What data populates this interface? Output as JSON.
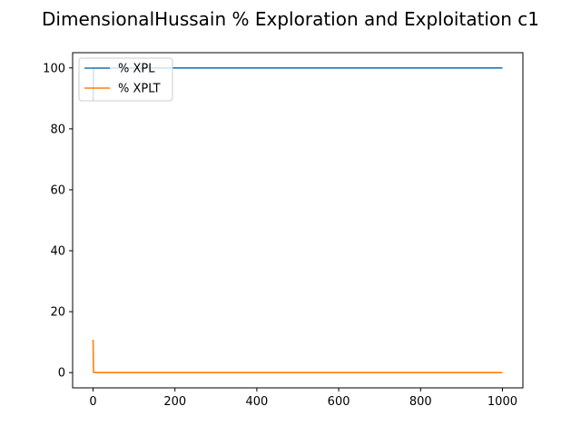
{
  "chart_data": {
    "type": "line",
    "title": "DimensionalHussain % Exploration and Exploitation c1",
    "xlabel": "",
    "ylabel": "",
    "xlim": [
      -50,
      1050
    ],
    "ylim": [
      -5,
      105
    ],
    "xticks": [
      0,
      200,
      400,
      600,
      800,
      1000
    ],
    "yticks": [
      0,
      20,
      40,
      60,
      80,
      100
    ],
    "grid": false,
    "legend_position": "upper-left",
    "series": [
      {
        "name": "% XPL",
        "color": "#1f77b4",
        "x": [
          0,
          1,
          2,
          1000
        ],
        "y": [
          89.2,
          99.8,
          100,
          100
        ]
      },
      {
        "name": "% XPLT",
        "color": "#ff7f0e",
        "x": [
          0,
          1,
          2,
          1000
        ],
        "y": [
          10.8,
          0.2,
          0,
          0
        ]
      }
    ]
  }
}
